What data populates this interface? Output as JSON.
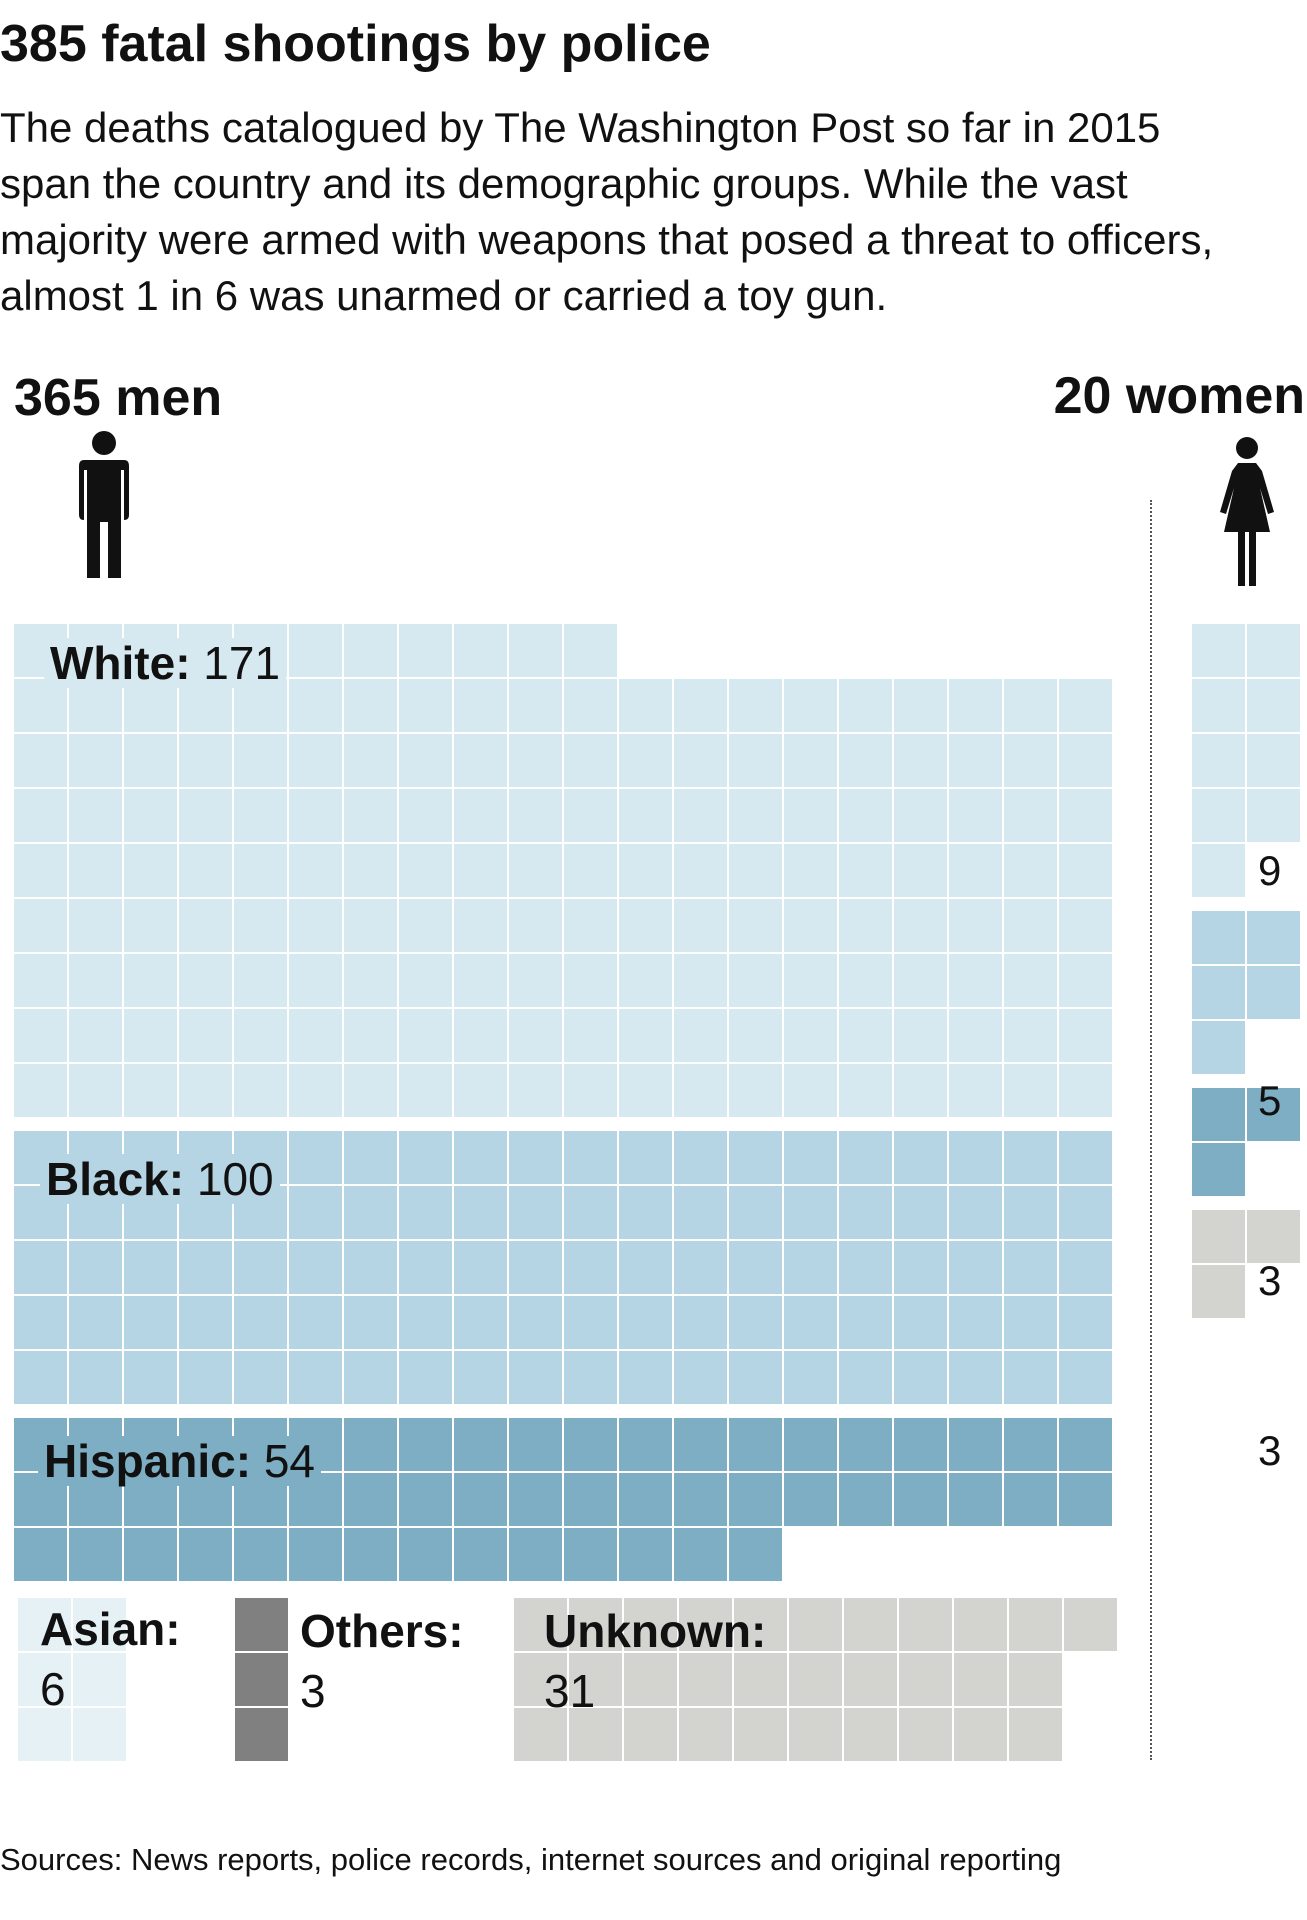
{
  "title": "385 fatal shootings by police",
  "subtitle": "The deaths catalogued by The Washington Post so far in 2015\nspan the country and its demographic groups. While the vast\nmajority were armed with weapons that posed a threat to officers,\nalmost 1 in 6 was unarmed or carried a toy gun.",
  "men_label": "365 men",
  "women_label": "20 women",
  "source": "Sources: News reports, police records, internet sources and original reporting",
  "colors": {
    "White": "#d6e8f0",
    "Black": "#b6d5e4",
    "Hispanic": "#7daec4",
    "Asian": "#e6f1f6",
    "Others": "#808080",
    "Unknown": "#d3d3d0"
  },
  "icons": {
    "men": "man-icon",
    "women": "woman-icon"
  },
  "chart_data": {
    "type": "waffle",
    "title": "385 fatal shootings by police",
    "series": [
      {
        "name": "365 men",
        "categories": [
          "White",
          "Black",
          "Hispanic",
          "Asian",
          "Others",
          "Unknown"
        ],
        "labels": [
          "White:",
          "Black:",
          "Hispanic:",
          "Asian:",
          "Others:",
          "Unknown:"
        ],
        "values": [
          171,
          100,
          54,
          6,
          3,
          31
        ]
      },
      {
        "name": "20 women",
        "categories": [
          "White",
          "Black",
          "Hispanic",
          "Unknown"
        ],
        "values": [
          9,
          5,
          3,
          3
        ]
      }
    ]
  }
}
